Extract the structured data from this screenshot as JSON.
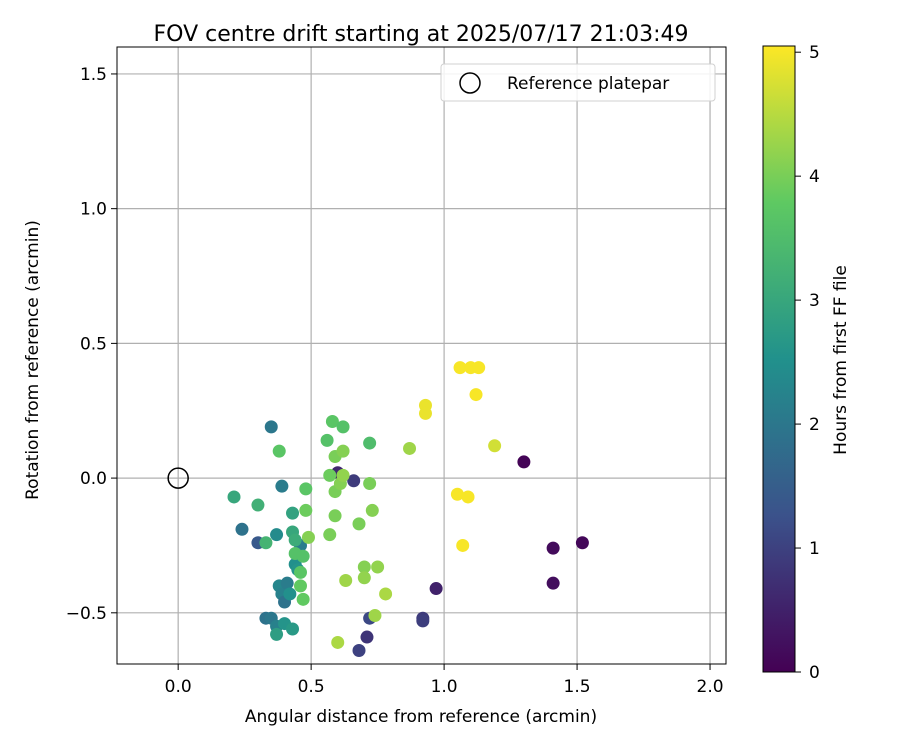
{
  "chart_data": {
    "type": "scatter",
    "title": "FOV centre drift starting at 2025/07/17 21:03:49",
    "xlabel": "Angular distance from reference (arcmin)",
    "ylabel": "Rotation from reference (arcmin)",
    "xlim": [
      -0.23,
      2.06
    ],
    "ylim": [
      -0.69,
      1.6
    ],
    "x_ticks": [
      0.0,
      0.5,
      1.0,
      1.5,
      2.0
    ],
    "x_tick_labels": [
      "0.0",
      "0.5",
      "1.0",
      "1.5",
      "2.0"
    ],
    "y_ticks": [
      -0.5,
      0.0,
      0.5,
      1.0,
      1.5
    ],
    "y_tick_labels": [
      "−0.5",
      "0.0",
      "0.5",
      "1.0",
      "1.5"
    ],
    "grid": true,
    "legend": {
      "position": "top-right",
      "entries": [
        "Reference platepar"
      ]
    },
    "colorbar": {
      "label": "Hours from first FF file",
      "colormap": "viridis",
      "range": [
        0,
        5.05
      ],
      "ticks": [
        0,
        1,
        2,
        3,
        4,
        5
      ],
      "tick_labels": [
        "0",
        "1",
        "2",
        "3",
        "4",
        "5"
      ]
    },
    "reference_point": {
      "x": 0.0,
      "y": 0.0
    },
    "series": [
      {
        "points": [
          {
            "x": 1.3,
            "y": 0.06,
            "c": 0.05
          },
          {
            "x": 1.52,
            "y": -0.24,
            "c": 0.1
          },
          {
            "x": 1.41,
            "y": -0.26,
            "c": 0.15
          },
          {
            "x": 1.41,
            "y": -0.39,
            "c": 0.2
          },
          {
            "x": 0.97,
            "y": -0.41,
            "c": 0.5
          },
          {
            "x": 0.92,
            "y": -0.52,
            "c": 0.9
          },
          {
            "x": 0.92,
            "y": -0.53,
            "c": 0.95
          },
          {
            "x": 0.71,
            "y": -0.59,
            "c": 0.8
          },
          {
            "x": 0.68,
            "y": -0.64,
            "c": 1.0
          },
          {
            "x": 0.72,
            "y": -0.52,
            "c": 1.1
          },
          {
            "x": 0.6,
            "y": 0.02,
            "c": 0.6
          },
          {
            "x": 0.66,
            "y": -0.01,
            "c": 0.9
          },
          {
            "x": 0.3,
            "y": -0.24,
            "c": 1.4
          },
          {
            "x": 0.24,
            "y": -0.19,
            "c": 1.9
          },
          {
            "x": 0.35,
            "y": 0.19,
            "c": 2.0
          },
          {
            "x": 0.39,
            "y": -0.03,
            "c": 2.1
          },
          {
            "x": 0.37,
            "y": -0.21,
            "c": 2.4
          },
          {
            "x": 0.33,
            "y": -0.52,
            "c": 1.9
          },
          {
            "x": 0.35,
            "y": -0.52,
            "c": 2.0
          },
          {
            "x": 0.37,
            "y": -0.55,
            "c": 2.2
          },
          {
            "x": 0.38,
            "y": -0.4,
            "c": 2.3
          },
          {
            "x": 0.39,
            "y": -0.43,
            "c": 2.2
          },
          {
            "x": 0.41,
            "y": -0.39,
            "c": 2.1
          },
          {
            "x": 0.4,
            "y": -0.46,
            "c": 1.9
          },
          {
            "x": 0.42,
            "y": -0.43,
            "c": 2.5
          },
          {
            "x": 0.4,
            "y": -0.54,
            "c": 2.6
          },
          {
            "x": 0.43,
            "y": -0.56,
            "c": 2.7
          },
          {
            "x": 0.37,
            "y": -0.58,
            "c": 2.8
          },
          {
            "x": 0.44,
            "y": -0.32,
            "c": 2.5
          },
          {
            "x": 0.45,
            "y": -0.34,
            "c": 2.6
          },
          {
            "x": 0.46,
            "y": -0.25,
            "c": 2.1
          },
          {
            "x": 0.43,
            "y": -0.13,
            "c": 2.9
          },
          {
            "x": 0.43,
            "y": -0.2,
            "c": 3.0
          },
          {
            "x": 0.44,
            "y": -0.23,
            "c": 3.1
          },
          {
            "x": 0.21,
            "y": -0.07,
            "c": 3.0
          },
          {
            "x": 0.3,
            "y": -0.1,
            "c": 3.2
          },
          {
            "x": 0.33,
            "y": -0.24,
            "c": 3.3
          },
          {
            "x": 0.44,
            "y": -0.28,
            "c": 3.6
          },
          {
            "x": 0.47,
            "y": -0.29,
            "c": 3.6
          },
          {
            "x": 0.46,
            "y": -0.35,
            "c": 3.7
          },
          {
            "x": 0.46,
            "y": -0.4,
            "c": 3.8
          },
          {
            "x": 0.47,
            "y": -0.45,
            "c": 3.8
          },
          {
            "x": 0.38,
            "y": 0.1,
            "c": 3.7
          },
          {
            "x": 0.48,
            "y": -0.04,
            "c": 3.7
          },
          {
            "x": 0.48,
            "y": -0.12,
            "c": 3.9
          },
          {
            "x": 0.49,
            "y": -0.22,
            "c": 4.1
          },
          {
            "x": 0.56,
            "y": 0.14,
            "c": 3.6
          },
          {
            "x": 0.58,
            "y": 0.21,
            "c": 3.7
          },
          {
            "x": 0.62,
            "y": 0.19,
            "c": 3.6
          },
          {
            "x": 0.72,
            "y": 0.13,
            "c": 3.5
          },
          {
            "x": 0.57,
            "y": 0.01,
            "c": 3.9
          },
          {
            "x": 0.59,
            "y": 0.08,
            "c": 4.0
          },
          {
            "x": 0.62,
            "y": 0.1,
            "c": 4.1
          },
          {
            "x": 0.59,
            "y": -0.05,
            "c": 4.0
          },
          {
            "x": 0.61,
            "y": -0.02,
            "c": 4.1
          },
          {
            "x": 0.62,
            "y": 0.01,
            "c": 4.2
          },
          {
            "x": 0.59,
            "y": -0.14,
            "c": 4.0
          },
          {
            "x": 0.57,
            "y": -0.21,
            "c": 4.0
          },
          {
            "x": 0.68,
            "y": -0.17,
            "c": 4.0
          },
          {
            "x": 0.72,
            "y": -0.02,
            "c": 4.0
          },
          {
            "x": 0.73,
            "y": -0.12,
            "c": 4.1
          },
          {
            "x": 0.7,
            "y": -0.33,
            "c": 4.1
          },
          {
            "x": 0.7,
            "y": -0.37,
            "c": 4.2
          },
          {
            "x": 0.63,
            "y": -0.38,
            "c": 4.3
          },
          {
            "x": 0.75,
            "y": -0.33,
            "c": 4.2
          },
          {
            "x": 0.74,
            "y": -0.51,
            "c": 4.3
          },
          {
            "x": 0.78,
            "y": -0.43,
            "c": 4.4
          },
          {
            "x": 0.6,
            "y": -0.61,
            "c": 4.4
          },
          {
            "x": 0.87,
            "y": 0.11,
            "c": 4.3
          },
          {
            "x": 1.19,
            "y": 0.12,
            "c": 4.7
          },
          {
            "x": 0.93,
            "y": 0.27,
            "c": 4.9
          },
          {
            "x": 0.93,
            "y": 0.24,
            "c": 4.9
          },
          {
            "x": 1.06,
            "y": 0.41,
            "c": 5.0
          },
          {
            "x": 1.1,
            "y": 0.41,
            "c": 5.0
          },
          {
            "x": 1.13,
            "y": 0.41,
            "c": 5.0
          },
          {
            "x": 1.12,
            "y": 0.31,
            "c": 5.0
          },
          {
            "x": 1.05,
            "y": -0.06,
            "c": 5.0
          },
          {
            "x": 1.09,
            "y": -0.07,
            "c": 5.0
          },
          {
            "x": 1.07,
            "y": -0.25,
            "c": 5.0
          }
        ]
      }
    ]
  },
  "colors": {
    "viridis_stops": [
      "#440154",
      "#3b528b",
      "#21918c",
      "#5ec962",
      "#fde725"
    ],
    "grid": "#b0b0b0",
    "axis": "#000000"
  }
}
